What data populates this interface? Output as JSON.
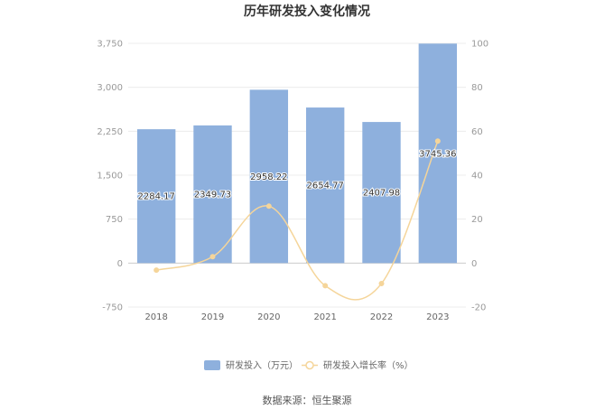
{
  "chart_data": {
    "type": "bar",
    "title": "历年研发投入变化情况",
    "categories": [
      "2018",
      "2019",
      "2020",
      "2021",
      "2022",
      "2023"
    ],
    "series": [
      {
        "name": "研发投入（万元）",
        "type": "bar",
        "axis": "left",
        "color": "#8eb0dd",
        "values": [
          2284.17,
          2349.73,
          2958.22,
          2654.77,
          2407.98,
          3745.36
        ],
        "labels": [
          "2284.17",
          "2349.73",
          "2958.22",
          "2654.77",
          "2407.98",
          "3745.36"
        ]
      },
      {
        "name": "研发投入增长率（%）",
        "type": "line",
        "axis": "right",
        "color": "#f5d59a",
        "values": [
          -3.2,
          2.9,
          25.9,
          -10.3,
          -9.3,
          55.5
        ]
      }
    ],
    "y_left": {
      "min": -750,
      "max": 3750,
      "ticks": [
        -750,
        0,
        750,
        1500,
        2250,
        3000,
        3750
      ],
      "tick_labels": [
        "-750",
        "0",
        "750",
        "1,500",
        "2,250",
        "3,000",
        "3,750"
      ]
    },
    "y_right": {
      "min": -20,
      "max": 100,
      "ticks": [
        -20,
        0,
        20,
        40,
        60,
        80,
        100
      ],
      "tick_labels": [
        "-20",
        "0",
        "20",
        "40",
        "60",
        "80",
        "100"
      ]
    },
    "grid": true,
    "legend_position": "bottom",
    "source": "数据来源：恒生聚源"
  }
}
